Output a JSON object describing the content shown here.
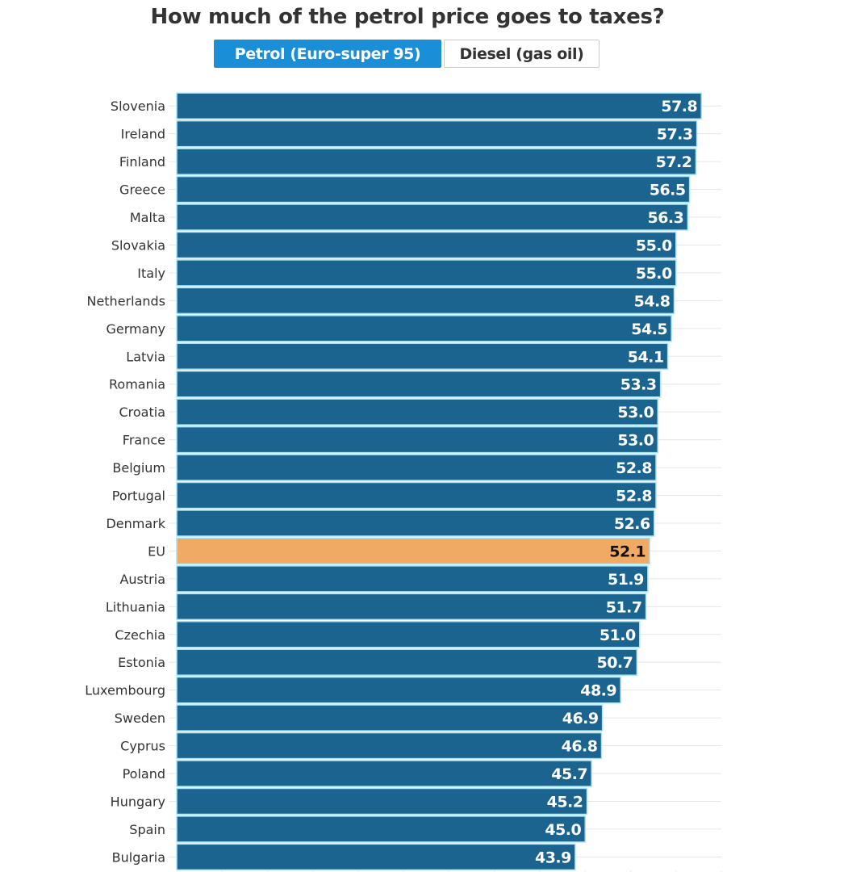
{
  "header": {
    "title": "How much of the petrol price goes to taxes?"
  },
  "toggle": {
    "options": [
      {
        "label": "Petrol (Euro-super 95)",
        "active": true
      },
      {
        "label": "Diesel (gas oil)",
        "active": false
      }
    ]
  },
  "colors": {
    "bar": "#1b6490",
    "highlight": "#f0aa64",
    "bar_border": "#a9e3f5",
    "value_text": "#ffffff",
    "highlight_text": "#111111",
    "grid": "#e6e6e6",
    "button_active": "#1a8fd8"
  },
  "chart_data": {
    "type": "bar",
    "orientation": "horizontal",
    "title": "How much of the petrol price goes to taxes?",
    "xlabel": "",
    "ylabel": "",
    "xlim": [
      0,
      60
    ],
    "grid": true,
    "highlight_category": "EU",
    "categories": [
      "Slovenia",
      "Ireland",
      "Finland",
      "Greece",
      "Malta",
      "Slovakia",
      "Italy",
      "Netherlands",
      "Germany",
      "Latvia",
      "Romania",
      "Croatia",
      "France",
      "Belgium",
      "Portugal",
      "Denmark",
      "EU",
      "Austria",
      "Lithuania",
      "Czechia",
      "Estonia",
      "Luxembourg",
      "Sweden",
      "Cyprus",
      "Poland",
      "Hungary",
      "Spain",
      "Bulgaria"
    ],
    "values": [
      57.8,
      57.3,
      57.2,
      56.5,
      56.3,
      55.0,
      55.0,
      54.8,
      54.5,
      54.1,
      53.3,
      53.0,
      53.0,
      52.8,
      52.8,
      52.6,
      52.1,
      51.9,
      51.7,
      51.0,
      50.7,
      48.9,
      46.9,
      46.8,
      45.7,
      45.2,
      45.0,
      43.9
    ],
    "value_labels": [
      "57.8",
      "57.3",
      "57.2",
      "56.5",
      "56.3",
      "55.0",
      "55.0",
      "54.8",
      "54.5",
      "54.1",
      "53.3",
      "53.0",
      "53.0",
      "52.8",
      "52.8",
      "52.6",
      "52.1",
      "51.9",
      "51.7",
      "51.0",
      "50.7",
      "48.9",
      "46.9",
      "46.8",
      "45.7",
      "45.2",
      "45.0",
      "43.9"
    ]
  }
}
